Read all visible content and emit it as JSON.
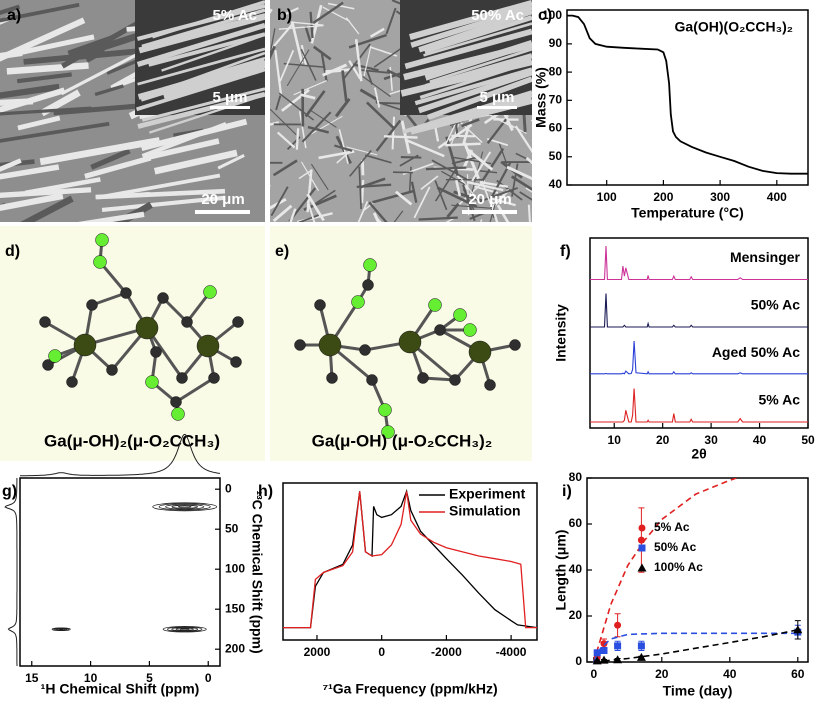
{
  "images": [
    {
      "label": "a)",
      "caption": "5% Ac",
      "inset_scale": "5 μm",
      "scale": "20 μm"
    },
    {
      "label": "b)",
      "caption": "50% Ac",
      "inset_scale": "5 μm",
      "scale": "20 μm"
    }
  ],
  "structures": [
    {
      "label": "d)",
      "caption": "Ga(μ-OH)₂(μ-O₂CCH₃)"
    },
    {
      "label": "e)",
      "caption": "Ga(μ-OH) (μ-O₂CCH₃)₂"
    }
  ],
  "chart_data": [
    {
      "type": "line",
      "panel_label": "c)",
      "annotation": "Ga(OH)(O₂CCH₃)₂",
      "xlabel": "Temperature (°C)",
      "ylabel": "Mass (%)",
      "xlim": [
        30,
        455
      ],
      "ylim": [
        40,
        102
      ],
      "xticks": [
        100,
        200,
        300,
        400
      ],
      "yticks": [
        40,
        50,
        60,
        70,
        80,
        90,
        100
      ],
      "color": "#000000",
      "x": [
        30,
        40,
        50,
        60,
        70,
        80,
        100,
        130,
        160,
        190,
        200,
        205,
        210,
        213,
        217,
        222,
        230,
        250,
        275,
        300,
        325,
        350,
        375,
        400,
        425,
        455
      ],
      "values": [
        100,
        100,
        99.5,
        97,
        92,
        90,
        89,
        88.6,
        88.3,
        88,
        87,
        84,
        76,
        65,
        59,
        57,
        55.5,
        53.5,
        51.5,
        50,
        48.5,
        46.5,
        45,
        44.2,
        44,
        44
      ]
    },
    {
      "type": "stacked-line",
      "panel_label": "f)",
      "xlabel": "2θ",
      "ylabel": "Intensity",
      "xlim": [
        5,
        50
      ],
      "xticks": [
        10,
        20,
        30,
        40,
        50
      ],
      "x": [
        5,
        8,
        8.3,
        8.6,
        11.5,
        11.8,
        12.1,
        12.4,
        13,
        13.5,
        13.8,
        14.1,
        14.5,
        16.8,
        17,
        17.2,
        22,
        22.3,
        22.6,
        25.6,
        25.9,
        26.2,
        35.5,
        36,
        36.5,
        50
      ],
      "series": [
        {
          "name": "Mensinger",
          "color": "#cc3399",
          "values": [
            0,
            0,
            1,
            0,
            0,
            0.4,
            0.1,
            0.35,
            0,
            0,
            0,
            0,
            0,
            0,
            0.12,
            0,
            0,
            0.1,
            0,
            0,
            0.08,
            0,
            0,
            0.05,
            0,
            0
          ]
        },
        {
          "name": "50% Ac",
          "color": "#1a1a55",
          "values": [
            0,
            0,
            1,
            0,
            0,
            0,
            0.05,
            0,
            0,
            0,
            0,
            0,
            0,
            0,
            0.1,
            0,
            0,
            0.05,
            0,
            0,
            0.05,
            0,
            0,
            0,
            0,
            0
          ]
        },
        {
          "name": "Aged 50% Ac",
          "color": "#2a3fd6",
          "values": [
            0.02,
            0.02,
            0.03,
            0.02,
            0.02,
            0.04,
            0.02,
            0.1,
            0.02,
            0.03,
            0.15,
            1,
            0.05,
            0.02,
            0.08,
            0.02,
            0.02,
            0.08,
            0.02,
            0.02,
            0.05,
            0.02,
            0.02,
            0.05,
            0.02,
            0.02
          ]
        },
        {
          "name": "5% Ac",
          "color": "#dd2222",
          "values": [
            0,
            0,
            0,
            0,
            0,
            0,
            0.05,
            0.35,
            0,
            0,
            0.2,
            1,
            0,
            0,
            0.05,
            0,
            0,
            0.25,
            0,
            0,
            0.08,
            0,
            0,
            0.1,
            0,
            0
          ]
        }
      ]
    },
    {
      "type": "contour",
      "panel_label": "g)",
      "xlabel": "¹H Chemical Shift (ppm)",
      "ylabel": "¹³C Chemical Shift (ppm)",
      "xlim": [
        16,
        -1
      ],
      "ylim": [
        221,
        -14
      ],
      "xticks": [
        15,
        10,
        5,
        0
      ],
      "yticks": [
        0,
        50,
        100,
        150,
        200
      ],
      "x": [
        2,
        12.5,
        2
      ],
      "values": [
        22,
        175,
        175
      ],
      "intensities": [
        1,
        0.12,
        0.6
      ]
    },
    {
      "type": "line",
      "panel_label": "h)",
      "xlabel": "⁷¹Ga Frequency (ppm/kHz)",
      "xlim": [
        3050,
        -4800
      ],
      "ylim": [
        -9,
        105
      ],
      "xticks": [
        2000,
        0,
        -2000,
        -4000
      ],
      "legend": "top-right",
      "series": [
        {
          "name": "Experiment",
          "color": "#000000",
          "x": [
            3050,
            2200,
            2050,
            1800,
            1200,
            900,
            680,
            500,
            300,
            250,
            150,
            0,
            -300,
            -600,
            -770,
            -900,
            -1200,
            -1600,
            -2000,
            -2500,
            -3000,
            -3500,
            -4000,
            -4200,
            -4800
          ],
          "values": [
            0,
            0,
            30,
            40,
            46,
            60,
            99,
            55,
            52,
            88,
            82,
            80,
            82,
            88,
            99,
            85,
            70,
            60,
            50,
            38,
            25,
            13,
            5,
            2,
            0
          ]
        },
        {
          "name": "Simulation",
          "color": "#e02020",
          "x": [
            3050,
            2200,
            2050,
            1800,
            1200,
            900,
            680,
            500,
            300,
            0,
            -300,
            -600,
            -770,
            -900,
            -1200,
            -1600,
            -2000,
            -2500,
            -3000,
            -3500,
            -4000,
            -4300,
            -4450,
            -4800
          ],
          "values": [
            0,
            0,
            35,
            40,
            45,
            55,
            99,
            55,
            52,
            53,
            60,
            75,
            99,
            78,
            68,
            62,
            58,
            55,
            52,
            50,
            48,
            46,
            0,
            0
          ]
        }
      ]
    },
    {
      "type": "scatter",
      "panel_label": "i)",
      "xlabel": "Time (day)",
      "ylabel": "Length (μm)",
      "xlim": [
        -2,
        63
      ],
      "ylim": [
        0,
        80
      ],
      "xticks": [
        0,
        20,
        40,
        60
      ],
      "yticks": [
        0,
        20,
        40,
        60,
        80
      ],
      "legend": "top-left",
      "series": [
        {
          "name": "5% Ac",
          "color": "#e02020",
          "marker": "circle",
          "x": [
            1,
            3,
            7,
            14
          ],
          "values": [
            2,
            8,
            16,
            53
          ],
          "errors": [
            1,
            2,
            5,
            14
          ],
          "fit": {
            "x": [
              0,
              2,
              5,
              10,
              15,
              20,
              30,
              40,
              42
            ],
            "values": [
              0,
              10,
              25,
              42,
              53,
              62,
              73,
              79,
              80
            ]
          }
        },
        {
          "name": "50% Ac",
          "color": "#2a4fe0",
          "marker": "square",
          "x": [
            1,
            3,
            7,
            14,
            60
          ],
          "values": [
            4,
            5,
            7,
            7,
            13
          ],
          "errors": [
            1,
            1,
            2,
            2,
            3
          ],
          "fit": {
            "x": [
              0,
              2,
              5,
              10,
              20,
              40,
              60
            ],
            "values": [
              0,
              6,
              10,
              12,
              12.5,
              12.5,
              12.5
            ]
          }
        },
        {
          "name": "100% Ac",
          "color": "#000000",
          "marker": "triangle",
          "x": [
            1,
            3,
            7,
            14,
            60
          ],
          "values": [
            0.5,
            0.8,
            1,
            2,
            14
          ],
          "errors": [
            0.3,
            0.3,
            0.5,
            0.5,
            4
          ],
          "fit": {
            "x": [
              0,
              10,
              20,
              30,
              40,
              50,
              60
            ],
            "values": [
              0,
              1.5,
              3.5,
              6,
              8.5,
              11,
              14
            ]
          }
        }
      ]
    }
  ]
}
